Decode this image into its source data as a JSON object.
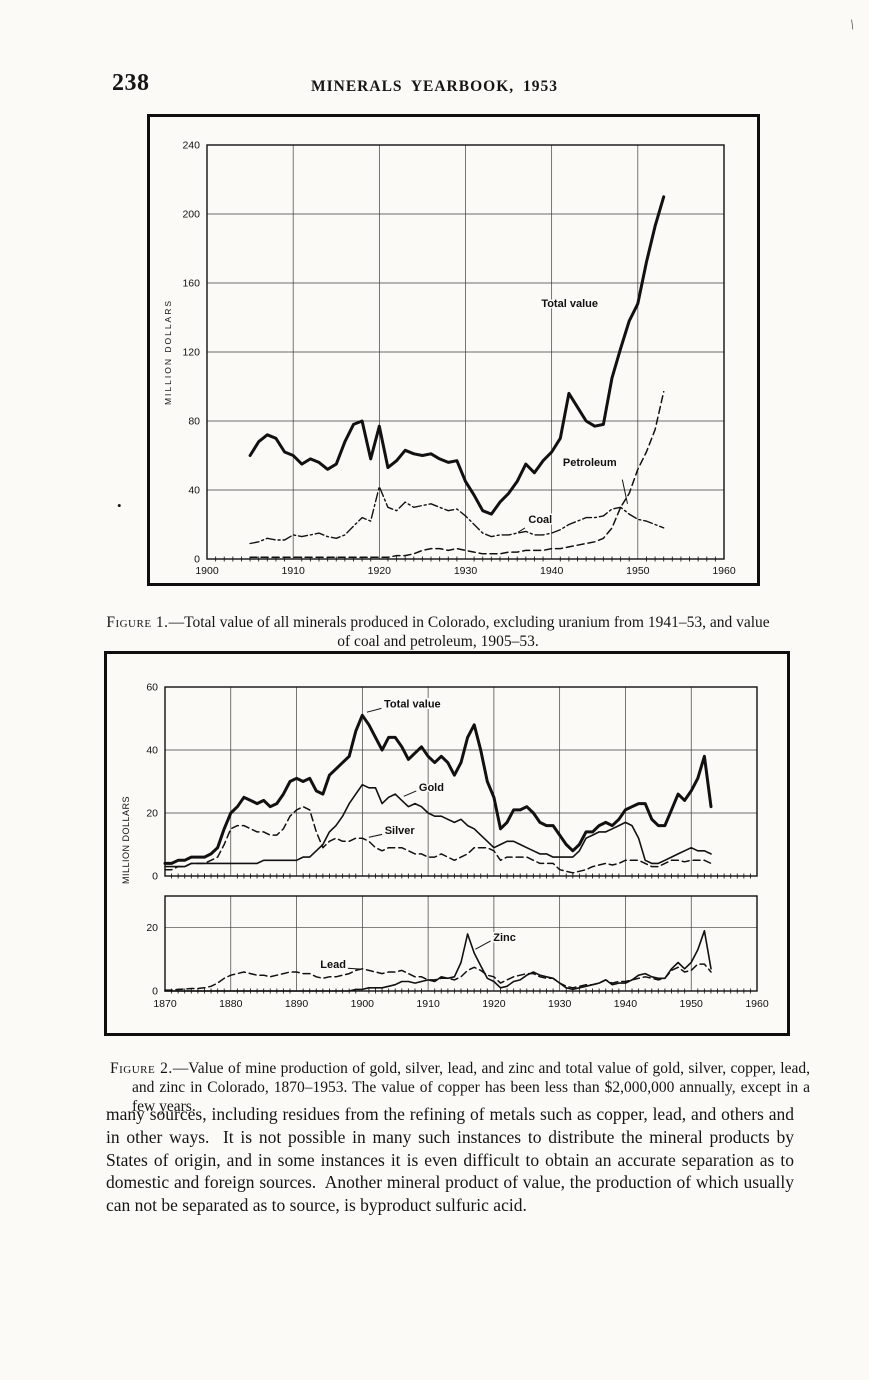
{
  "page": {
    "number": "238",
    "title": "MINERALS YEARBOOK, 1953"
  },
  "figures": {
    "fig1": {
      "caption_label": "Figure 1.",
      "caption_text": "—Total value of all minerals produced in Colorado, excluding uranium from 1941–53, and value of coal and petroleum, 1905–53."
    },
    "fig2": {
      "caption_label": "Figure 2.",
      "caption_text": "—Value of mine production of gold, silver, lead, and zinc and total value of gold, silver, copper, lead, and zinc in Colorado, 1870–1953.  The value of copper has been less than $2,000,000 annually, except in a few years."
    }
  },
  "body_text": "many sources, including residues from the refining of metals such as copper, lead, and others and in other ways.  It is not possible in many such instances to distribute the mineral products by States of origin, and in some instances it is even difficult to obtain an accurate separation as to domestic and foreign sources.  Another mineral product of value, the production of which usually can not be separated as to source, is byproduct sulfuric acid.",
  "artifacts": {
    "margin_dot": "•",
    "corner_mark": "\\"
  },
  "chart_data": [
    {
      "id": "figure1",
      "type": "line",
      "ylabel": "MILLION DOLLARS",
      "xlabel": "",
      "xlim": [
        1900,
        1960
      ],
      "ylim": [
        0,
        240
      ],
      "xticks": [
        1900,
        1910,
        1920,
        1930,
        1940,
        1950,
        1960
      ],
      "yticks": [
        0,
        40,
        80,
        120,
        160,
        200,
        240
      ],
      "grid": true,
      "legend": "inline-labels",
      "series": [
        {
          "name": "Total value",
          "style": "solid-thick",
          "x0": 1905,
          "dx": 1,
          "values": [
            60,
            68,
            72,
            70,
            62,
            60,
            55,
            58,
            56,
            52,
            55,
            68,
            78,
            80,
            58,
            77,
            53,
            57,
            63,
            61,
            60,
            61,
            58,
            56,
            57,
            45,
            37,
            28,
            26,
            33,
            38,
            45,
            55,
            50,
            57,
            62,
            70,
            96,
            88,
            80,
            77,
            78,
            105,
            122,
            138,
            148,
            172,
            193,
            210
          ]
        },
        {
          "name": "Coal",
          "style": "dashdot",
          "x0": 1905,
          "dx": 1,
          "values": [
            9,
            10,
            12,
            11,
            11,
            14,
            13,
            14,
            15,
            13,
            12,
            14,
            19,
            24,
            22,
            42,
            30,
            28,
            33,
            30,
            31,
            32,
            30,
            28,
            29,
            25,
            20,
            15,
            13,
            14,
            14,
            15,
            16,
            14,
            14,
            15,
            17,
            20,
            22,
            24,
            24,
            25,
            29,
            30,
            26,
            23,
            22,
            20,
            18
          ]
        },
        {
          "name": "Petroleum",
          "style": "dashed",
          "x0": 1905,
          "dx": 1,
          "values": [
            1,
            1,
            1,
            1,
            1,
            1,
            1,
            1,
            1,
            1,
            1,
            1,
            1,
            1,
            1,
            1,
            1,
            2,
            2,
            3,
            5,
            6,
            6,
            5,
            6,
            5,
            4,
            3,
            3,
            3,
            4,
            4,
            5,
            5,
            5,
            6,
            6,
            7,
            8,
            9,
            10,
            12,
            18,
            30,
            38,
            52,
            62,
            75,
            97
          ]
        }
      ],
      "annotations": [
        {
          "text": "Total value",
          "x": 1938.8,
          "y": 146
        },
        {
          "text": "Petroleum",
          "x": 1941.3,
          "y": 54,
          "lead_from": [
            1948.2,
            46
          ],
          "lead_to": [
            1948.8,
            32
          ]
        },
        {
          "text": "Coal",
          "x": 1937.3,
          "y": 21,
          "lead_from": [
            1936.9,
            18
          ],
          "lead_to": [
            1936.1,
            15.5
          ]
        }
      ]
    },
    {
      "id": "figure2-top",
      "type": "line",
      "ylabel": "MILLION  DOLLARS",
      "xlabel": "",
      "xlim": [
        1870,
        1960
      ],
      "ylim": [
        0,
        60
      ],
      "xticks": [
        1870,
        1880,
        1890,
        1900,
        1910,
        1920,
        1930,
        1940,
        1950,
        1960
      ],
      "yticks": [
        0,
        20,
        40,
        60
      ],
      "grid": true,
      "legend": "inline-labels",
      "series": [
        {
          "name": "Total value",
          "style": "solid-thick",
          "x0": 1870,
          "dx": 1,
          "values": [
            4,
            4,
            5,
            5,
            6,
            6,
            6,
            7,
            9,
            15,
            20,
            22,
            25,
            24,
            23,
            24,
            22,
            23,
            26,
            30,
            31,
            30,
            31,
            27,
            26,
            32,
            34,
            36,
            38,
            46,
            51,
            48,
            44,
            40,
            44,
            44,
            41,
            37,
            39,
            41,
            38,
            36,
            38,
            36,
            32,
            36,
            44,
            48,
            40,
            30,
            25,
            15,
            17,
            21,
            21,
            22,
            20,
            17,
            16,
            16,
            13,
            10,
            8,
            10,
            14,
            14,
            16,
            17,
            16,
            18,
            21,
            22,
            23,
            23,
            18,
            16,
            16,
            21,
            26,
            24,
            27,
            31,
            38,
            22
          ]
        },
        {
          "name": "Gold",
          "style": "solid",
          "x0": 1870,
          "dx": 1,
          "values": [
            3,
            3,
            3,
            3,
            4,
            4,
            4,
            4,
            4,
            4,
            4,
            4,
            4,
            4,
            4,
            5,
            5,
            5,
            5,
            5,
            5,
            6,
            6,
            8,
            10,
            14,
            16,
            19,
            23,
            26,
            29,
            28,
            28,
            23,
            25,
            26,
            24,
            22,
            23,
            22,
            20,
            19,
            19,
            18,
            17,
            18,
            16,
            15,
            13,
            11,
            9,
            10,
            11,
            11,
            10,
            9,
            8,
            7,
            7,
            6,
            6,
            6,
            6,
            8,
            12,
            13,
            14,
            14,
            15,
            16,
            17,
            16,
            12,
            5,
            4,
            4,
            5,
            6,
            7,
            8,
            9,
            8,
            8,
            7
          ]
        },
        {
          "name": "Silver",
          "style": "dashed",
          "x0": 1870,
          "dx": 1,
          "values": [
            2,
            2,
            3,
            3,
            4,
            4,
            4,
            5,
            6,
            10,
            15,
            16,
            16,
            15,
            14,
            14,
            13,
            13,
            15,
            19,
            21,
            22,
            21,
            14,
            9,
            11,
            12,
            11,
            11,
            12,
            12,
            11,
            9,
            8,
            9,
            9,
            9,
            8,
            7,
            7,
            6,
            6,
            7,
            6,
            5,
            6,
            7,
            9,
            9,
            9,
            8,
            5,
            6,
            6,
            6,
            6,
            5,
            4,
            4,
            4,
            2,
            1.5,
            1,
            1.5,
            2,
            3,
            3.5,
            4,
            3.5,
            4,
            5,
            5,
            5,
            4,
            3,
            3,
            4,
            5,
            5,
            4.5,
            5,
            5,
            5,
            4
          ]
        }
      ],
      "annotations": [
        {
          "text": "Total value",
          "x": 1903.3,
          "y": 53.5,
          "lead_from": [
            1902.9,
            53.2
          ],
          "lead_to": [
            1900.7,
            52
          ]
        },
        {
          "text": "Gold",
          "x": 1908.6,
          "y": 27,
          "lead_from": [
            1908.2,
            27
          ],
          "lead_to": [
            1906.3,
            25.3
          ]
        },
        {
          "text": "Silver",
          "x": 1903.4,
          "y": 13.4,
          "lead_from": [
            1903,
            13.2
          ],
          "lead_to": [
            1901,
            12.3
          ]
        }
      ]
    },
    {
      "id": "figure2-bottom",
      "type": "line",
      "ylabel": "",
      "xlabel": "",
      "xlim": [
        1870,
        1960
      ],
      "ylim": [
        0,
        30
      ],
      "xticks": [
        1870,
        1880,
        1890,
        1900,
        1910,
        1920,
        1930,
        1940,
        1950,
        1960
      ],
      "yticks": [
        0,
        20
      ],
      "grid": true,
      "legend": "inline-labels",
      "series": [
        {
          "name": "Zinc",
          "style": "solid",
          "x0": 1870,
          "dx": 1,
          "values": [
            0,
            0,
            0,
            0,
            0,
            0,
            0,
            0,
            0,
            0,
            0,
            0,
            0,
            0,
            0,
            0,
            0,
            0,
            0,
            0,
            0,
            0,
            0,
            0,
            0,
            0,
            0,
            0,
            0,
            0.5,
            0.5,
            1,
            1,
            1,
            1.5,
            2,
            3,
            3,
            2.5,
            3,
            3.5,
            3,
            4.5,
            4,
            4.5,
            9,
            18,
            12,
            8,
            4,
            3,
            1,
            1.5,
            3,
            3.5,
            5,
            6,
            5,
            4.5,
            4,
            2.5,
            1,
            0.5,
            1,
            1.5,
            2,
            2.5,
            3.5,
            2,
            2.5,
            2.5,
            3.5,
            5,
            5.5,
            4.5,
            4,
            4,
            7,
            9,
            7,
            9,
            13,
            19,
            7
          ]
        },
        {
          "name": "Lead",
          "style": "dashed",
          "x0": 1870,
          "dx": 1,
          "values": [
            0.3,
            0.3,
            0.5,
            0.6,
            0.8,
            0.8,
            1,
            1.5,
            2.5,
            4,
            5,
            5.5,
            6,
            5.5,
            5,
            5,
            4.5,
            5,
            5.5,
            6,
            6,
            5.5,
            5.5,
            4.5,
            4,
            4.5,
            4.5,
            5,
            5.5,
            6.5,
            7,
            6.5,
            6,
            5.5,
            6,
            6,
            6.5,
            5.5,
            4.5,
            4.5,
            3.5,
            3.5,
            4,
            4,
            3.5,
            4.5,
            6.5,
            7.5,
            6.5,
            5,
            4.5,
            2.5,
            3.5,
            4.5,
            5,
            5.5,
            5.5,
            4.5,
            4,
            4,
            2.5,
            1.5,
            1,
            1.5,
            2,
            2,
            2.5,
            3.5,
            2.5,
            3,
            3,
            3.5,
            4,
            4.5,
            4,
            3.5,
            4,
            6.5,
            7.5,
            6,
            6.5,
            8.5,
            8.5,
            6
          ]
        }
      ],
      "annotations": [
        {
          "text": "Zinc",
          "x": 1919.9,
          "y": 15.8,
          "lead_from": [
            1919.5,
            15.8
          ],
          "lead_to": [
            1917.2,
            13.2
          ]
        },
        {
          "text": "Lead",
          "x": 1893.6,
          "y": 7.3,
          "lead_from": [
            1897.8,
            7.2
          ],
          "lead_to": [
            1899.8,
            6.9
          ]
        }
      ]
    }
  ]
}
